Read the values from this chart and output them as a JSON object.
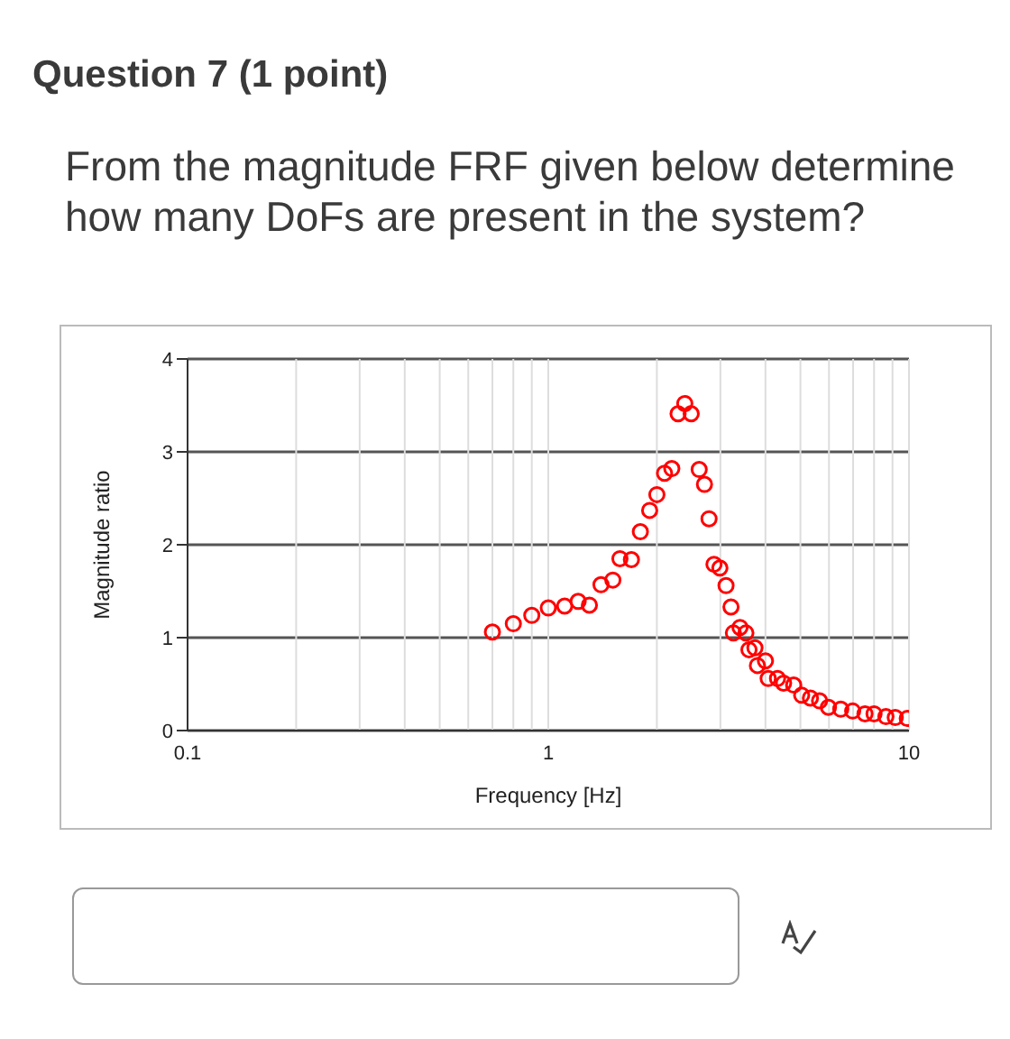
{
  "chart_data": {
    "type": "scatter",
    "title": "Question 7 (1 point)",
    "subtitle": "From the magnitude FRF given below determine how many DoFs are present in the system?",
    "xlabel": "Frequency [Hz]",
    "ylabel": "Magnitude ratio",
    "x": [
      0.7,
      0.8,
      0.9,
      1.0,
      1.11,
      1.21,
      1.3,
      1.4,
      1.51,
      1.58,
      1.7,
      1.8,
      1.91,
      2.0,
      2.1,
      2.2,
      2.29,
      2.39,
      2.49,
      2.62,
      2.71,
      2.79,
      2.88,
      2.99,
      3.11,
      3.21,
      3.26,
      3.4,
      3.53,
      3.6,
      3.74,
      3.8,
      4.0,
      4.07,
      4.32,
      4.49,
      4.79,
      5.04,
      5.33,
      5.65,
      5.98,
      6.47,
      6.98,
      7.55,
      8.0,
      8.63,
      9.16,
      9.89
    ],
    "values": [
      1.06,
      1.15,
      1.24,
      1.32,
      1.34,
      1.39,
      1.35,
      1.57,
      1.62,
      1.85,
      1.84,
      2.14,
      2.37,
      2.54,
      2.77,
      2.82,
      3.41,
      3.52,
      3.41,
      2.81,
      2.65,
      2.28,
      1.79,
      1.75,
      1.56,
      1.33,
      1.05,
      1.11,
      1.05,
      0.87,
      0.89,
      0.7,
      0.75,
      0.56,
      0.56,
      0.51,
      0.49,
      0.38,
      0.35,
      0.32,
      0.25,
      0.23,
      0.21,
      0.18,
      0.18,
      0.15,
      0.14,
      0.13
    ],
    "color": "#ff0000",
    "marker": "circle",
    "log": "x",
    "grid": true,
    "xlim": [
      0.1,
      10
    ],
    "ylim": [
      0,
      4
    ],
    "yticks": [
      0,
      1,
      2,
      3,
      4
    ],
    "xticks": [
      0.1,
      {
        "value": 0.2,
        "label": null
      },
      {
        "value": 0.3,
        "label": null
      },
      {
        "value": 0.4,
        "label": null
      },
      {
        "value": 0.5,
        "label": null
      },
      {
        "value": 0.6,
        "label": null
      },
      {
        "value": 0.7,
        "label": null
      },
      {
        "value": 0.8,
        "label": null
      },
      {
        "value": 0.9,
        "label": null
      },
      1,
      {
        "value": 2,
        "label": null
      },
      {
        "value": 3,
        "label": null
      },
      {
        "value": 4,
        "label": null
      },
      {
        "value": 5,
        "label": null
      },
      {
        "value": 6,
        "label": null
      },
      {
        "value": 7,
        "label": null
      },
      {
        "value": 8,
        "label": null
      },
      {
        "value": 9,
        "label": null
      },
      10
    ]
  }
}
